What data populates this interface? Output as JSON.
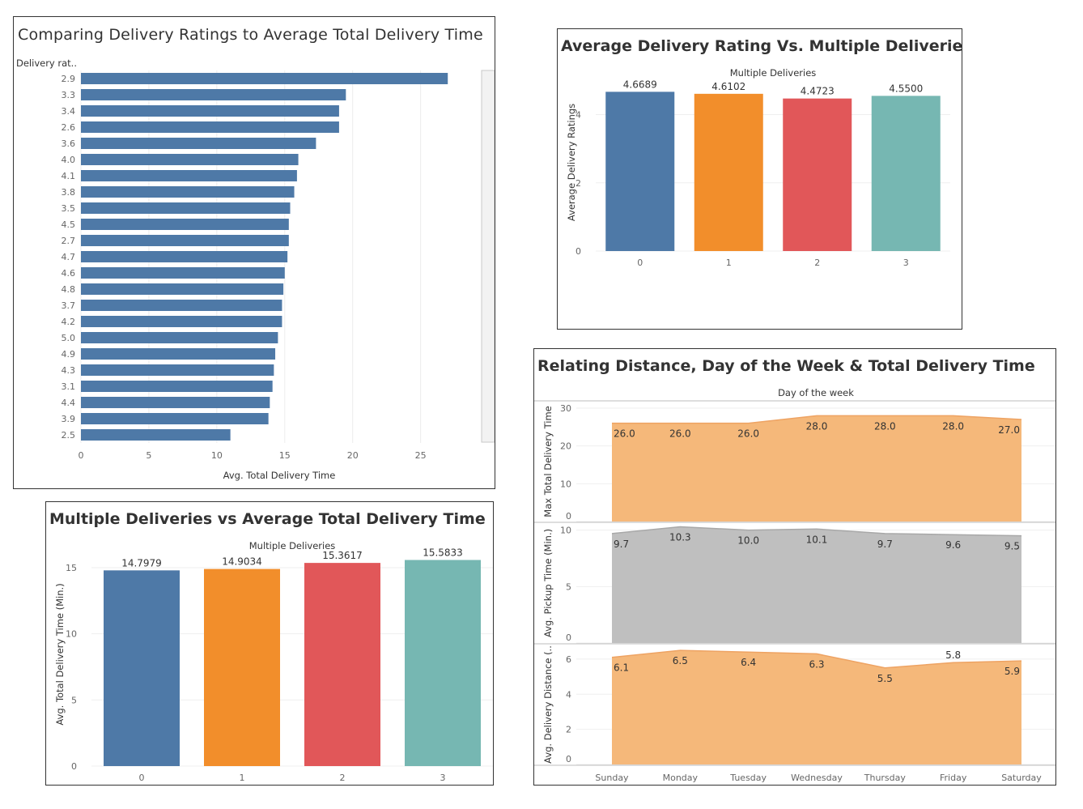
{
  "chart_data": [
    {
      "type": "bar",
      "orientation": "horizontal",
      "title": "Comparing Delivery Ratings to Average Total Delivery Time",
      "ylabel": "Delivery rat..",
      "xlabel": "Avg. Total Delivery Time",
      "categories": [
        "2.9",
        "3.3",
        "3.4",
        "2.6",
        "3.6",
        "4.0",
        "4.1",
        "3.8",
        "3.5",
        "4.5",
        "2.7",
        "4.7",
        "4.6",
        "4.8",
        "3.7",
        "4.2",
        "5.0",
        "4.9",
        "4.3",
        "3.1",
        "4.4",
        "3.9",
        "2.5"
      ],
      "values": [
        27.0,
        19.5,
        19.0,
        19.0,
        17.3,
        16.0,
        15.9,
        15.7,
        15.4,
        15.3,
        15.3,
        15.2,
        15.0,
        14.9,
        14.8,
        14.8,
        14.5,
        14.3,
        14.2,
        14.1,
        13.9,
        13.8,
        11.0
      ],
      "xlim": [
        0,
        28
      ],
      "xticks": [
        0,
        5,
        10,
        15,
        20,
        25
      ],
      "color": "#4e79a7"
    },
    {
      "type": "bar",
      "title": "Average Delivery Rating Vs. Multiple Deliveries",
      "header": "Multiple Deliveries",
      "ylabel": "Average Delivery Ratings",
      "categories": [
        "0",
        "1",
        "2",
        "3"
      ],
      "values": [
        4.6689,
        4.6102,
        4.4723,
        4.55
      ],
      "value_labels": [
        "4.6689",
        "4.6102",
        "4.4723",
        "4.5500"
      ],
      "ylim": [
        0,
        5.2
      ],
      "yticks": [
        0,
        2,
        4
      ],
      "colors": [
        "#4e79a7",
        "#f28e2b",
        "#e15759",
        "#76b7b2"
      ]
    },
    {
      "type": "bar",
      "title": "Multiple Deliveries vs Average Total Delivery Time",
      "header": "Multiple Deliveries",
      "ylabel": "Avg. Total Delivery Time (Min.)",
      "categories": [
        "0",
        "1",
        "2",
        "3"
      ],
      "values": [
        14.7979,
        14.9034,
        15.3617,
        15.5833
      ],
      "value_labels": [
        "14.7979",
        "14.9034",
        "15.3617",
        "15.5833"
      ],
      "ylim": [
        0,
        16.9
      ],
      "yticks": [
        0,
        5,
        10,
        15
      ],
      "colors": [
        "#4e79a7",
        "#f28e2b",
        "#e15759",
        "#76b7b2"
      ]
    },
    {
      "type": "area",
      "title": "Relating Distance, Day of the Week & Total Delivery Time",
      "header": "Day of the week",
      "categories": [
        "Sunday",
        "Monday",
        "Tuesday",
        "Wednesday",
        "Thursday",
        "Friday",
        "Saturday"
      ],
      "panels": [
        {
          "ylabel": "Max Total Delivery Time",
          "values": [
            26.0,
            26.0,
            26.0,
            28.0,
            28.0,
            28.0,
            27.0
          ],
          "value_labels": [
            "26.0",
            "26.0",
            "26.0",
            "28.0",
            "28.0",
            "28.0",
            "27.0"
          ],
          "ylim": [
            0,
            31.5
          ],
          "yticks": [
            0,
            10,
            20,
            30
          ],
          "color": "#f5b87a"
        },
        {
          "ylabel": "Avg. Pickup Time (Min.)",
          "values": [
            9.7,
            10.3,
            10.0,
            10.1,
            9.7,
            9.6,
            9.5
          ],
          "value_labels": [
            "9.7",
            "10.3",
            "10.0",
            "10.1",
            "9.7",
            "9.6",
            "9.5"
          ],
          "ylim": [
            0,
            10.55
          ],
          "yticks": [
            0,
            5,
            10
          ],
          "color": "#bfbfbf"
        },
        {
          "ylabel": "Avg. Delivery Distance (..",
          "values": [
            6.1,
            6.5,
            6.4,
            6.3,
            5.5,
            5.8,
            5.9
          ],
          "value_labels": [
            "6.1",
            "6.5",
            "6.4",
            "6.3",
            "5.5",
            "5.8",
            "5.9"
          ],
          "ylim": [
            0,
            6.78
          ],
          "yticks": [
            0,
            2,
            4,
            6
          ],
          "color": "#f5b87a"
        }
      ]
    }
  ]
}
